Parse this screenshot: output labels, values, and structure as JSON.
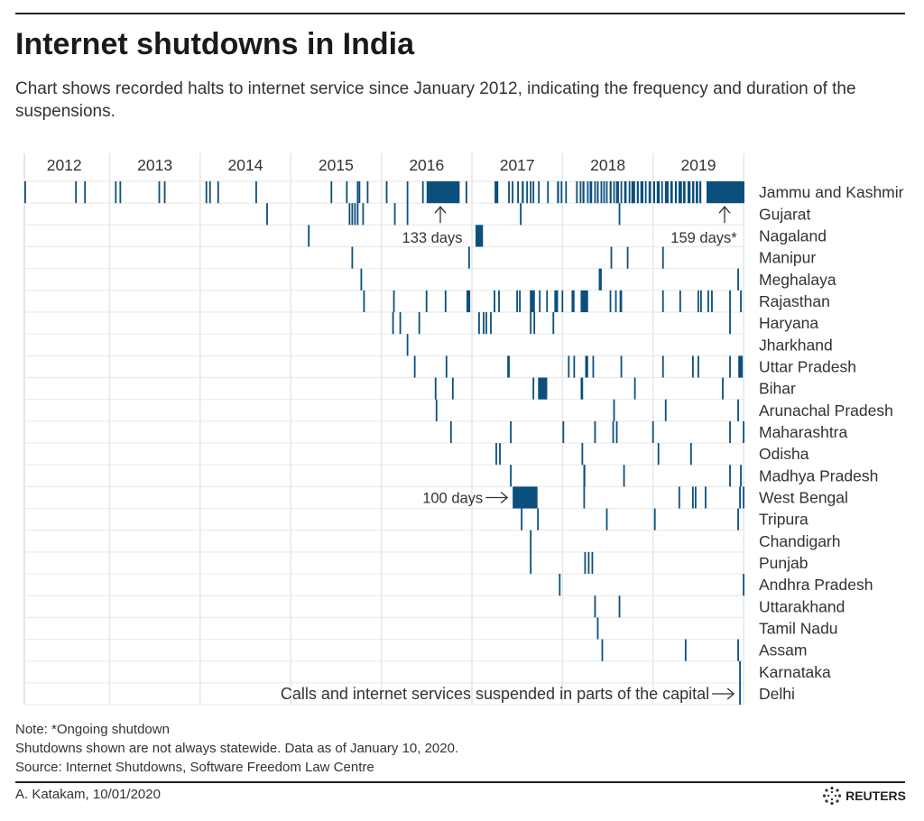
{
  "title": "Internet shutdowns in India",
  "subtitle": "Chart shows recorded halts to internet service since January 2012, indicating the frequency and duration of the suspensions.",
  "footer": {
    "note": "Note: *Ongoing shutdown",
    "disclaimer": "Shutdowns shown are not always statewide. Data as of January 10, 2020.",
    "source": "Source: Internet Shutdowns, Software Freedom Law Centre",
    "byline": "A. Katakam,  10/01/2020",
    "logo": "REUTERS"
  },
  "chart_data": {
    "type": "timeline",
    "x_unit": "year (decimal)",
    "xlim": [
      2012.0,
      2020.03
    ],
    "tick_labels": [
      "2012",
      "2013",
      "2014",
      "2015",
      "2016",
      "2017",
      "2018",
      "2019"
    ],
    "grid": true,
    "bar_color": "#0b4f7c",
    "event_format": "[start_year_decimal, duration_days]",
    "annotations": [
      {
        "text": "133 days",
        "row": "Jammu and Kashmir",
        "at": 2016.66,
        "arrow": "up"
      },
      {
        "text": "159 days*",
        "row": "Jammu and Kashmir",
        "at": 2019.8,
        "arrow": "up"
      },
      {
        "text": "100 days",
        "row": "West Bengal",
        "at": 2017.45,
        "arrow": "right"
      },
      {
        "text": "Calls and internet services suspended in parts of the capital",
        "row": "Delhi",
        "at": 2019.95,
        "arrow": "right"
      }
    ],
    "rows": [
      {
        "name": "Jammu and Kashmir",
        "events": [
          [
            2012.06,
            1
          ],
          [
            2012.62,
            1
          ],
          [
            2012.72,
            1
          ],
          [
            2013.06,
            1
          ],
          [
            2013.11,
            1
          ],
          [
            2013.54,
            1
          ],
          [
            2013.6,
            5
          ],
          [
            2014.06,
            1
          ],
          [
            2014.1,
            1
          ],
          [
            2014.19,
            3
          ],
          [
            2014.61,
            1
          ],
          [
            2015.44,
            1
          ],
          [
            2015.61,
            2
          ],
          [
            2015.73,
            1
          ],
          [
            2015.75,
            3
          ],
          [
            2015.84,
            2
          ],
          [
            2016.05,
            1
          ],
          [
            2016.28,
            1
          ],
          [
            2016.45,
            3
          ],
          [
            2016.5,
            133
          ],
          [
            2016.93,
            2
          ],
          [
            2017.25,
            15
          ],
          [
            2017.4,
            2
          ],
          [
            2017.44,
            2
          ],
          [
            2017.5,
            6
          ],
          [
            2017.55,
            8
          ],
          [
            2017.6,
            6
          ],
          [
            2017.64,
            4
          ],
          [
            2017.67,
            2
          ],
          [
            2017.73,
            1
          ],
          [
            2017.83,
            1
          ],
          [
            2017.94,
            8
          ],
          [
            2017.98,
            5
          ],
          [
            2018.03,
            4
          ],
          [
            2018.15,
            6
          ],
          [
            2018.19,
            4
          ],
          [
            2018.22,
            8
          ],
          [
            2018.27,
            5
          ],
          [
            2018.3,
            10
          ],
          [
            2018.35,
            4
          ],
          [
            2018.38,
            7
          ],
          [
            2018.42,
            3
          ],
          [
            2018.45,
            6
          ],
          [
            2018.48,
            5
          ],
          [
            2018.52,
            8
          ],
          [
            2018.56,
            4
          ],
          [
            2018.59,
            12
          ],
          [
            2018.64,
            6
          ],
          [
            2018.68,
            10
          ],
          [
            2018.73,
            5
          ],
          [
            2018.76,
            15
          ],
          [
            2018.82,
            8
          ],
          [
            2018.86,
            12
          ],
          [
            2018.91,
            6
          ],
          [
            2018.95,
            10
          ],
          [
            2019.0,
            8
          ],
          [
            2019.04,
            12
          ],
          [
            2019.09,
            6
          ],
          [
            2019.13,
            15
          ],
          [
            2019.19,
            10
          ],
          [
            2019.24,
            8
          ],
          [
            2019.28,
            14
          ],
          [
            2019.33,
            10
          ],
          [
            2019.38,
            12
          ],
          [
            2019.43,
            9
          ],
          [
            2019.47,
            10
          ],
          [
            2019.51,
            8
          ],
          [
            2019.59,
            159
          ]
        ]
      },
      {
        "name": "Gujarat",
        "events": [
          [
            2014.73,
            1
          ],
          [
            2015.64,
            2
          ],
          [
            2015.67,
            2
          ],
          [
            2015.7,
            2
          ],
          [
            2015.73,
            2
          ],
          [
            2015.79,
            1
          ],
          [
            2016.14,
            1
          ],
          [
            2016.28,
            1
          ],
          [
            2017.53,
            1
          ],
          [
            2018.62,
            1
          ]
        ]
      },
      {
        "name": "Nagaland",
        "events": [
          [
            2015.19,
            1
          ],
          [
            2017.04,
            30
          ]
        ]
      },
      {
        "name": "Manipur",
        "events": [
          [
            2015.67,
            1
          ],
          [
            2016.96,
            2
          ],
          [
            2018.53,
            1
          ],
          [
            2018.71,
            1
          ],
          [
            2019.1,
            1
          ]
        ]
      },
      {
        "name": "Meghalaya",
        "events": [
          [
            2015.77,
            1
          ],
          [
            2018.4,
            12
          ],
          [
            2019.93,
            1
          ]
        ]
      },
      {
        "name": "Rajasthan",
        "events": [
          [
            2015.8,
            1
          ],
          [
            2016.13,
            1
          ],
          [
            2016.49,
            1
          ],
          [
            2016.7,
            1
          ],
          [
            2016.94,
            15
          ],
          [
            2017.24,
            1
          ],
          [
            2017.29,
            1
          ],
          [
            2017.49,
            1
          ],
          [
            2017.52,
            1
          ],
          [
            2017.64,
            20
          ],
          [
            2017.74,
            1
          ],
          [
            2017.82,
            1
          ],
          [
            2017.91,
            15
          ],
          [
            2017.99,
            3
          ],
          [
            2018.1,
            12
          ],
          [
            2018.2,
            30
          ],
          [
            2018.52,
            1
          ],
          [
            2018.58,
            1
          ],
          [
            2018.63,
            10
          ],
          [
            2019.1,
            1
          ],
          [
            2019.29,
            1
          ],
          [
            2019.49,
            1
          ],
          [
            2019.52,
            1
          ],
          [
            2019.6,
            1
          ],
          [
            2019.64,
            1
          ],
          [
            2019.84,
            1
          ],
          [
            2019.96,
            1
          ]
        ]
      },
      {
        "name": "Haryana",
        "events": [
          [
            2016.12,
            1
          ],
          [
            2016.2,
            1
          ],
          [
            2016.41,
            1
          ],
          [
            2017.07,
            1
          ],
          [
            2017.12,
            2
          ],
          [
            2017.15,
            2
          ],
          [
            2017.2,
            1
          ],
          [
            2017.64,
            1
          ],
          [
            2017.68,
            1
          ],
          [
            2017.89,
            1
          ],
          [
            2019.84,
            1
          ]
        ]
      },
      {
        "name": "Jharkhand",
        "events": [
          [
            2016.28,
            1
          ]
        ]
      },
      {
        "name": "Uttar Pradesh",
        "events": [
          [
            2016.36,
            1
          ],
          [
            2016.71,
            1
          ],
          [
            2017.39,
            10
          ],
          [
            2018.06,
            1
          ],
          [
            2018.12,
            1
          ],
          [
            2018.25,
            12
          ],
          [
            2018.33,
            3
          ],
          [
            2018.64,
            1
          ],
          [
            2019.1,
            1
          ],
          [
            2019.43,
            2
          ],
          [
            2019.49,
            3
          ],
          [
            2019.84,
            1
          ],
          [
            2019.94,
            18
          ]
        ]
      },
      {
        "name": "Bihar",
        "events": [
          [
            2016.59,
            1
          ],
          [
            2016.78,
            1
          ],
          [
            2017.67,
            1
          ],
          [
            2017.73,
            37
          ],
          [
            2018.2,
            10
          ],
          [
            2018.79,
            1
          ],
          [
            2019.76,
            1
          ]
        ]
      },
      {
        "name": "Arunachal Pradesh",
        "events": [
          [
            2016.6,
            1
          ],
          [
            2018.56,
            1
          ],
          [
            2019.13,
            1
          ],
          [
            2019.93,
            1
          ]
        ]
      },
      {
        "name": "Maharashtra",
        "events": [
          [
            2016.76,
            1
          ],
          [
            2017.42,
            1
          ],
          [
            2018.0,
            1
          ],
          [
            2018.35,
            1
          ],
          [
            2018.55,
            2
          ],
          [
            2018.59,
            1
          ],
          [
            2018.99,
            1
          ],
          [
            2019.84,
            1
          ],
          [
            2019.99,
            1
          ]
        ]
      },
      {
        "name": "Odisha",
        "events": [
          [
            2017.26,
            1
          ],
          [
            2017.3,
            1
          ],
          [
            2018.21,
            1
          ],
          [
            2019.05,
            1
          ],
          [
            2019.41,
            1
          ]
        ]
      },
      {
        "name": "Madhya Pradesh",
        "events": [
          [
            2017.42,
            1
          ],
          [
            2018.23,
            8
          ],
          [
            2018.67,
            1
          ],
          [
            2019.84,
            1
          ],
          [
            2019.96,
            1
          ]
        ]
      },
      {
        "name": "West Bengal",
        "events": [
          [
            2017.45,
            100
          ],
          [
            2018.23,
            1
          ],
          [
            2019.28,
            1
          ],
          [
            2019.43,
            2
          ],
          [
            2019.46,
            2
          ],
          [
            2019.57,
            1
          ],
          [
            2019.95,
            1
          ],
          [
            2019.99,
            1
          ]
        ]
      },
      {
        "name": "Tripura",
        "events": [
          [
            2017.54,
            1
          ],
          [
            2017.72,
            1
          ],
          [
            2018.48,
            1
          ],
          [
            2019.01,
            1
          ],
          [
            2019.93,
            1
          ]
        ]
      },
      {
        "name": "Chandigarh",
        "events": [
          [
            2017.64,
            1
          ]
        ]
      },
      {
        "name": "Punjab",
        "events": [
          [
            2017.64,
            1
          ],
          [
            2018.24,
            1
          ],
          [
            2018.28,
            1
          ],
          [
            2018.32,
            1
          ]
        ]
      },
      {
        "name": "Andhra Pradesh",
        "events": [
          [
            2017.96,
            1
          ],
          [
            2019.99,
            1
          ]
        ]
      },
      {
        "name": "Uttarakhand",
        "events": [
          [
            2018.35,
            1
          ],
          [
            2018.62,
            1
          ]
        ]
      },
      {
        "name": "Tamil Nadu",
        "events": [
          [
            2018.38,
            1
          ]
        ]
      },
      {
        "name": "Assam",
        "events": [
          [
            2018.43,
            1
          ],
          [
            2019.35,
            1
          ],
          [
            2019.93,
            1
          ]
        ]
      },
      {
        "name": "Karnataka",
        "events": [
          [
            2019.95,
            1
          ]
        ]
      },
      {
        "name": "Delhi",
        "events": [
          [
            2019.95,
            1
          ]
        ]
      }
    ]
  }
}
